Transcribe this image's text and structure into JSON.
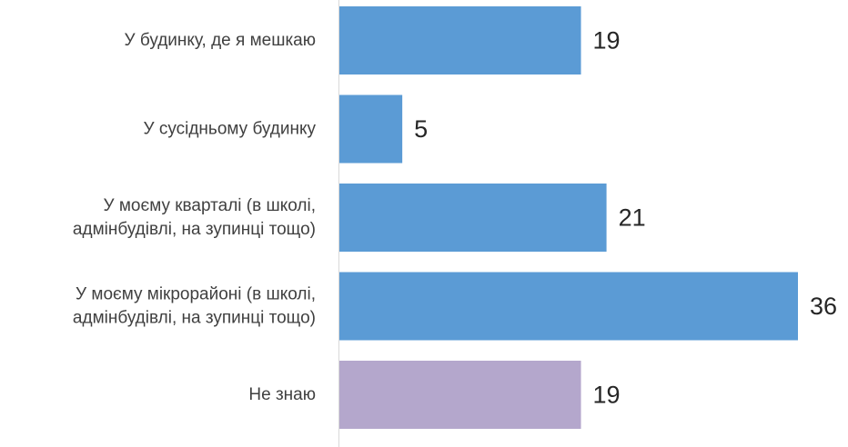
{
  "chart_data": {
    "type": "bar",
    "orientation": "horizontal",
    "title": "",
    "xlabel": "",
    "ylabel": "",
    "categories": [
      [
        "У будинку, де я мешкаю"
      ],
      [
        "У сусідньому будинку"
      ],
      [
        "У моєму кварталі (в школі,",
        "адмінбудівлі, на зупинці тощо)"
      ],
      [
        "У моєму мікрорайоні (в школі,",
        "адмінбудівлі, на зупинці тощо)"
      ],
      [
        "Не знаю"
      ]
    ],
    "values": [
      19,
      5,
      21,
      36,
      19
    ],
    "value_labels": [
      "19",
      "5",
      "21",
      "36",
      "19"
    ],
    "bar_colors": [
      "#5B9BD5",
      "#5B9BD5",
      "#5B9BD5",
      "#5B9BD5",
      "#B4A7CC"
    ],
    "xlim": [
      0,
      36
    ],
    "grid": false,
    "legend": "none"
  }
}
